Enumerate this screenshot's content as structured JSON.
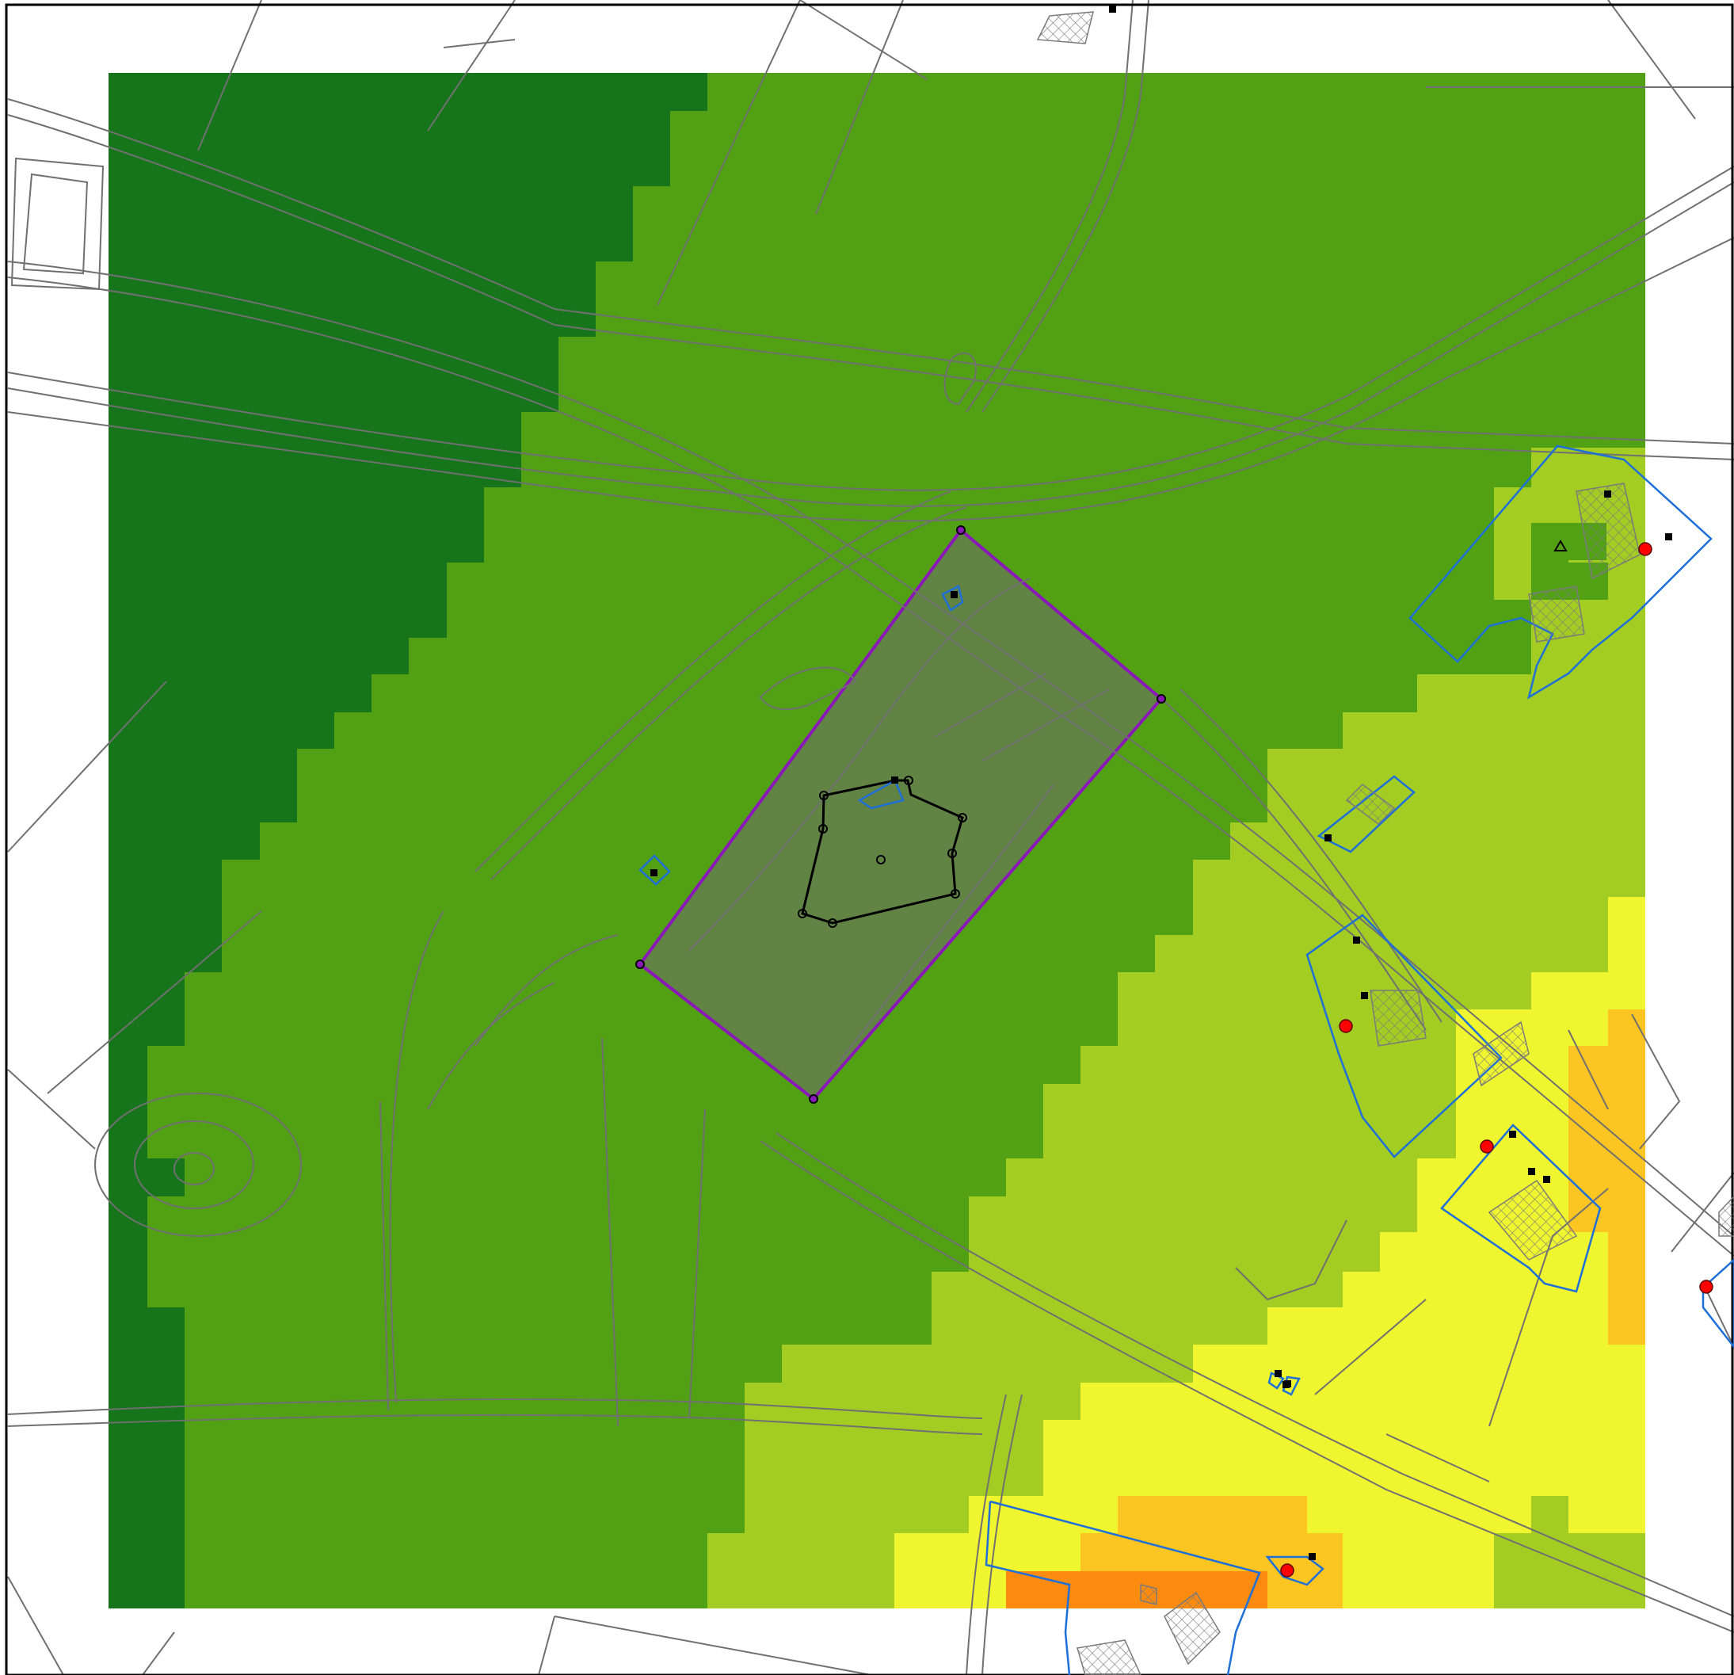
{
  "map": {
    "kind": "noise-contour-map",
    "legend_visible": false,
    "colors": {
      "background": "#ffffff",
      "frame": "#000000",
      "zone_darkgreen": "#16741a",
      "zone_green": "#52a115",
      "zone_lightgreen": "#a3cd22",
      "zone_yellow": "#eff62f",
      "zone_amber": "#fdc522",
      "zone_orange": "#fd8b0f",
      "parcel_lines": "#707070",
      "site_boundary": "#8a18b8",
      "site_fill": "#6d6d6d",
      "buildings_blue": "#1e6fd8",
      "receptor_red": "#ff0000",
      "marker_black": "#000000"
    },
    "icons": [
      "vertex-circle-icon",
      "receptor-dot-icon",
      "building-square-icon",
      "triangle-marker-icon"
    ],
    "counts": {
      "receptor_points": 6,
      "building_markers": 17,
      "site_vertices": 4,
      "inner_vertices": 9
    }
  }
}
